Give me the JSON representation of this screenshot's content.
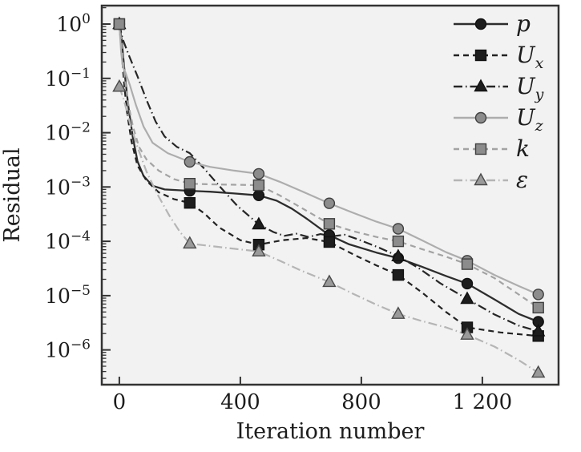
{
  "chart_data": {
    "type": "line",
    "title": "",
    "xlabel": "Iteration number",
    "ylabel": "Residual",
    "grid": false,
    "legend_position": "upper-right-inside",
    "plot_bg": "#f2f2f3",
    "frame_color": "#333333",
    "text_color": "#1c1c1c",
    "x_axis": {
      "lim": [
        -58,
        1452
      ],
      "ticks": [
        0,
        400,
        800,
        1200
      ],
      "tick_labels": [
        "0",
        "400",
        "800",
        "1 200"
      ]
    },
    "y_axis": {
      "scale": "log",
      "lim_log10": [
        -6.64,
        0.34
      ],
      "tick_exponents": [
        0,
        -1,
        -2,
        -3,
        -4,
        -5,
        -6
      ],
      "mantissa_base": "10"
    },
    "series": [
      {
        "name": "p",
        "label_base": "p",
        "label_sub": "",
        "color": "#2d2d2d",
        "dash": "solid",
        "line_width": 2.3,
        "marker": "circle",
        "marker_fill": "#1d1d1d",
        "marker_edge": "#111111",
        "line_points": [
          [
            0,
            1
          ],
          [
            8,
            0.5
          ],
          [
            18,
            0.12
          ],
          [
            30,
            0.03
          ],
          [
            45,
            0.008
          ],
          [
            60,
            0.003
          ],
          [
            80,
            0.0016
          ],
          [
            110,
            0.00105
          ],
          [
            150,
            0.0009
          ],
          [
            233,
            0.00085
          ],
          [
            300,
            0.00082
          ],
          [
            380,
            0.00076
          ],
          [
            461,
            0.0007
          ],
          [
            520,
            0.00056
          ],
          [
            570,
            0.0004
          ],
          [
            620,
            0.00026
          ],
          [
            694,
            0.00013
          ],
          [
            760,
            8.8e-05
          ],
          [
            850,
            6.2e-05
          ],
          [
            922,
            4.9e-05
          ],
          [
            1000,
            3.4e-05
          ],
          [
            1080,
            2.3e-05
          ],
          [
            1150,
            1.66e-05
          ],
          [
            1240,
            8.5e-06
          ],
          [
            1320,
            4.6e-06
          ],
          [
            1385,
            3.3e-06
          ]
        ],
        "marker_points": [
          [
            0,
            1
          ],
          [
            233,
            0.00085
          ],
          [
            461,
            0.0007
          ],
          [
            694,
            0.00013
          ],
          [
            922,
            4.9e-05
          ],
          [
            1150,
            1.66e-05
          ],
          [
            1385,
            3.3e-06
          ]
        ]
      },
      {
        "name": "Ux",
        "label_base": "U",
        "label_sub": "x",
        "color": "#222222",
        "dash": "7 5",
        "line_width": 2.2,
        "marker": "square",
        "marker_fill": "#1d1d1d",
        "marker_edge": "#111111",
        "line_points": [
          [
            0,
            1
          ],
          [
            7,
            0.35
          ],
          [
            15,
            0.09
          ],
          [
            25,
            0.025
          ],
          [
            40,
            0.007
          ],
          [
            60,
            0.0025
          ],
          [
            90,
            0.0013
          ],
          [
            130,
            0.0008
          ],
          [
            180,
            0.0006
          ],
          [
            233,
            0.00051
          ],
          [
            280,
            0.00033
          ],
          [
            330,
            0.00018
          ],
          [
            400,
            0.000105
          ],
          [
            461,
            8.7e-05
          ],
          [
            540,
            0.000105
          ],
          [
            620,
            0.000115
          ],
          [
            694,
            9.7e-05
          ],
          [
            780,
            5.5e-05
          ],
          [
            850,
            3.6e-05
          ],
          [
            922,
            2.4e-05
          ],
          [
            1000,
            1.15e-05
          ],
          [
            1080,
            5e-06
          ],
          [
            1150,
            2.6e-06
          ],
          [
            1260,
            2.1e-06
          ],
          [
            1385,
            1.8e-06
          ]
        ],
        "marker_points": [
          [
            0,
            1
          ],
          [
            233,
            0.00051
          ],
          [
            461,
            8.7e-05
          ],
          [
            694,
            9.7e-05
          ],
          [
            922,
            2.4e-05
          ],
          [
            1150,
            2.6e-06
          ],
          [
            1385,
            1.8e-06
          ]
        ]
      },
      {
        "name": "Uy",
        "label_base": "U",
        "label_sub": "y",
        "color": "#262626",
        "dash": "11 4 1.5 4",
        "line_width": 2.2,
        "marker": "triangle",
        "marker_fill": "#1d1d1d",
        "marker_edge": "#111111",
        "line_points": [
          [
            0,
            1
          ],
          [
            10,
            0.55
          ],
          [
            30,
            0.28
          ],
          [
            60,
            0.11
          ],
          [
            90,
            0.04
          ],
          [
            120,
            0.016
          ],
          [
            150,
            0.0085
          ],
          [
            190,
            0.0055
          ],
          [
            233,
            0.0042
          ],
          [
            280,
            0.0022
          ],
          [
            330,
            0.00105
          ],
          [
            390,
            0.00045
          ],
          [
            461,
            0.000205
          ],
          [
            510,
            0.000148
          ],
          [
            545,
            0.000126
          ],
          [
            585,
            0.000138
          ],
          [
            625,
            0.00012
          ],
          [
            665,
            0.000136
          ],
          [
            705,
            0.000124
          ],
          [
            745,
            0.000132
          ],
          [
            790,
            0.000108
          ],
          [
            860,
            7.6e-05
          ],
          [
            922,
            5.3e-05
          ],
          [
            990,
            3.2e-05
          ],
          [
            1060,
            1.7e-05
          ],
          [
            1150,
            8.7e-06
          ],
          [
            1240,
            4.5e-06
          ],
          [
            1320,
            2.8e-06
          ],
          [
            1385,
            2.2e-06
          ]
        ],
        "marker_points": [
          [
            0,
            1
          ],
          [
            461,
            0.000205
          ],
          [
            922,
            5.3e-05
          ],
          [
            1150,
            8.7e-06
          ],
          [
            1385,
            2.2e-06
          ]
        ]
      },
      {
        "name": "Uz",
        "label_base": "U",
        "label_sub": "z",
        "color": "#adadad",
        "dash": "solid",
        "line_width": 2.2,
        "marker": "circle",
        "marker_fill": "#8c8c8c",
        "marker_edge": "#404040",
        "line_points": [
          [
            0,
            1
          ],
          [
            6,
            0.3
          ],
          [
            12,
            0.16
          ],
          [
            20,
            0.13
          ],
          [
            35,
            0.075
          ],
          [
            55,
            0.032
          ],
          [
            80,
            0.013
          ],
          [
            110,
            0.0065
          ],
          [
            160,
            0.0042
          ],
          [
            233,
            0.0029
          ],
          [
            300,
            0.00235
          ],
          [
            380,
            0.002
          ],
          [
            461,
            0.00175
          ],
          [
            530,
            0.00125
          ],
          [
            600,
            0.00085
          ],
          [
            694,
            0.0005
          ],
          [
            770,
            0.00034
          ],
          [
            850,
            0.00023
          ],
          [
            922,
            0.00017
          ],
          [
            1000,
            0.000105
          ],
          [
            1080,
            6.3e-05
          ],
          [
            1150,
            4.4e-05
          ],
          [
            1240,
            2.4e-05
          ],
          [
            1320,
            1.5e-05
          ],
          [
            1385,
            1.05e-05
          ]
        ],
        "marker_points": [
          [
            0,
            1
          ],
          [
            233,
            0.0029
          ],
          [
            461,
            0.00175
          ],
          [
            694,
            0.0005
          ],
          [
            922,
            0.00017
          ],
          [
            1150,
            4.4e-05
          ],
          [
            1385,
            1.05e-05
          ]
        ]
      },
      {
        "name": "k",
        "label_base": "k",
        "label_sub": "",
        "color": "#a3a3a3",
        "dash": "7 5",
        "line_width": 2.2,
        "marker": "square",
        "marker_fill": "#8c8c8c",
        "marker_edge": "#404040",
        "line_points": [
          [
            0,
            1
          ],
          [
            8,
            0.4
          ],
          [
            18,
            0.1
          ],
          [
            30,
            0.033
          ],
          [
            45,
            0.013
          ],
          [
            65,
            0.0055
          ],
          [
            90,
            0.0032
          ],
          [
            130,
            0.002
          ],
          [
            180,
            0.0014
          ],
          [
            233,
            0.00115
          ],
          [
            300,
            0.00112
          ],
          [
            380,
            0.0011
          ],
          [
            461,
            0.00108
          ],
          [
            530,
            0.0007
          ],
          [
            600,
            0.00042
          ],
          [
            694,
            0.00021
          ],
          [
            770,
            0.000155
          ],
          [
            850,
            0.00012
          ],
          [
            922,
            0.0001
          ],
          [
            1000,
            7.2e-05
          ],
          [
            1080,
            5.2e-05
          ],
          [
            1150,
            3.8e-05
          ],
          [
            1240,
            2.1e-05
          ],
          [
            1320,
            1.05e-05
          ],
          [
            1385,
            6e-06
          ]
        ],
        "marker_points": [
          [
            0,
            1
          ],
          [
            233,
            0.00115
          ],
          [
            461,
            0.00108
          ],
          [
            694,
            0.00021
          ],
          [
            922,
            0.0001
          ],
          [
            1150,
            3.8e-05
          ],
          [
            1385,
            6e-06
          ]
        ]
      },
      {
        "name": "epsilon",
        "label_base": "ε",
        "label_sub": "",
        "color": "#b5b5b5",
        "dash": "11 4 1.5 4",
        "line_width": 2.2,
        "marker": "triangle",
        "marker_fill": "#9a9a9a",
        "marker_edge": "#4a4a4a",
        "line_points": [
          [
            0,
            0.07
          ],
          [
            15,
            0.04
          ],
          [
            35,
            0.015
          ],
          [
            60,
            0.0055
          ],
          [
            90,
            0.0019
          ],
          [
            125,
            0.00075
          ],
          [
            165,
            0.0003
          ],
          [
            200,
            0.00015
          ],
          [
            233,
            9.1e-05
          ],
          [
            300,
            8.2e-05
          ],
          [
            380,
            7.3e-05
          ],
          [
            461,
            6.5e-05
          ],
          [
            530,
            4.4e-05
          ],
          [
            600,
            2.9e-05
          ],
          [
            694,
            1.78e-05
          ],
          [
            770,
            1.1e-05
          ],
          [
            850,
            6.8e-06
          ],
          [
            922,
            4.6e-06
          ],
          [
            1000,
            3.4e-06
          ],
          [
            1080,
            2.6e-06
          ],
          [
            1150,
            1.9e-06
          ],
          [
            1240,
            1.15e-06
          ],
          [
            1320,
            6.5e-07
          ],
          [
            1385,
            3.8e-07
          ]
        ],
        "marker_points": [
          [
            0,
            0.07
          ],
          [
            233,
            9.1e-05
          ],
          [
            461,
            6.5e-05
          ],
          [
            694,
            1.78e-05
          ],
          [
            922,
            4.6e-06
          ],
          [
            1150,
            1.9e-06
          ],
          [
            1385,
            3.8e-07
          ]
        ]
      }
    ]
  }
}
